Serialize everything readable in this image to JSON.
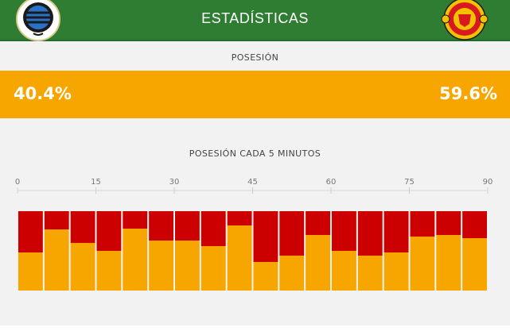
{
  "header": {
    "title": "ESTADÍSTICAS",
    "home_crest": "club-brugge-crest",
    "away_crest": "manchester-united-crest"
  },
  "possession": {
    "label": "POSESIÓN",
    "home_value": "40.4%",
    "away_value": "59.6%"
  },
  "colors": {
    "header_green": "#2e7d32",
    "possession_orange": "#f7a600",
    "bar_red": "#cc0000",
    "background": "#f2f2f2"
  },
  "chart_data": {
    "type": "bar",
    "title": "POSESIÓN CADA 5 MINUTOS",
    "x_ticks": [
      "0",
      "15",
      "30",
      "45",
      "60",
      "75",
      "90"
    ],
    "x_range": [
      0,
      90
    ],
    "y_range": [
      0,
      100
    ],
    "stacked": true,
    "intervals": 18,
    "series": [
      {
        "color": "#f7a600",
        "values": [
          48,
          77,
          60,
          50,
          78,
          63,
          63,
          56,
          82,
          36,
          44,
          70,
          50,
          44,
          48,
          68,
          70,
          66
        ]
      },
      {
        "color": "#cc0000",
        "values": [
          52,
          23,
          40,
          50,
          22,
          37,
          37,
          44,
          18,
          64,
          56,
          30,
          50,
          56,
          52,
          32,
          30,
          34
        ]
      }
    ]
  }
}
